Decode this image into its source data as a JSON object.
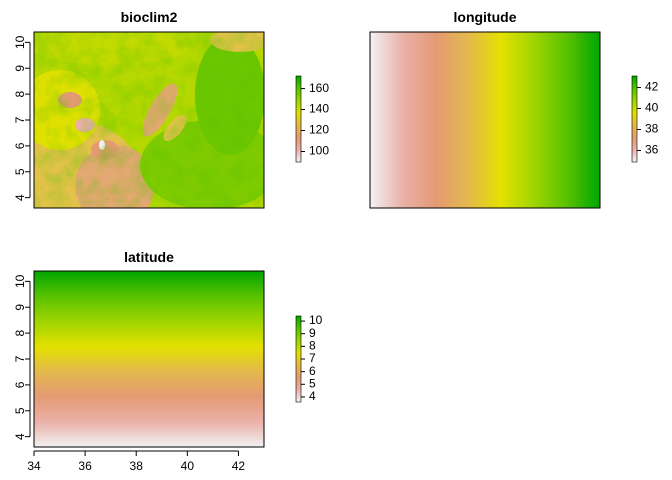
{
  "chart_data": [
    {
      "type": "heatmap",
      "title": "bioclim2",
      "xlim": [
        34,
        43
      ],
      "ylim": [
        3.6,
        10.4
      ],
      "xticks": [],
      "yticks": [
        4,
        5,
        6,
        7,
        8,
        9,
        10
      ],
      "legend": {
        "min": 90,
        "max": 172,
        "ticks": [
          100,
          120,
          140,
          160
        ],
        "placement": "right"
      },
      "palette": [
        "#f2f2f2",
        "#eab0a8",
        "#e49a74",
        "#e3b94c",
        "#e3e100",
        "#9fd400",
        "#58c200",
        "#00a600"
      ]
    },
    {
      "type": "heatmap",
      "title": "longitude",
      "xlim": [
        34,
        43
      ],
      "ylim": [
        3.6,
        10.4
      ],
      "xticks": [],
      "yticks": [],
      "legend": {
        "min": 34.9,
        "max": 43.1,
        "ticks": [
          36,
          38,
          40,
          42
        ],
        "placement": "right"
      },
      "palette": [
        "#f2f2f2",
        "#eab0a8",
        "#e49a74",
        "#e3b94c",
        "#e3e100",
        "#9fd400",
        "#58c200",
        "#00a600"
      ]
    },
    {
      "type": "heatmap",
      "title": "latitude",
      "xlim": [
        34,
        43
      ],
      "ylim": [
        3.6,
        10.4
      ],
      "xticks": [
        34,
        36,
        38,
        40,
        42
      ],
      "yticks": [
        4,
        5,
        6,
        7,
        8,
        9,
        10
      ],
      "legend": {
        "min": 3.6,
        "max": 10.4,
        "ticks": [
          4,
          5,
          6,
          7,
          8,
          9,
          10
        ],
        "placement": "right"
      },
      "palette": [
        "#f2f2f2",
        "#eab0a8",
        "#e49a74",
        "#e3b94c",
        "#e3e100",
        "#9fd400",
        "#58c200",
        "#00a600"
      ]
    }
  ]
}
